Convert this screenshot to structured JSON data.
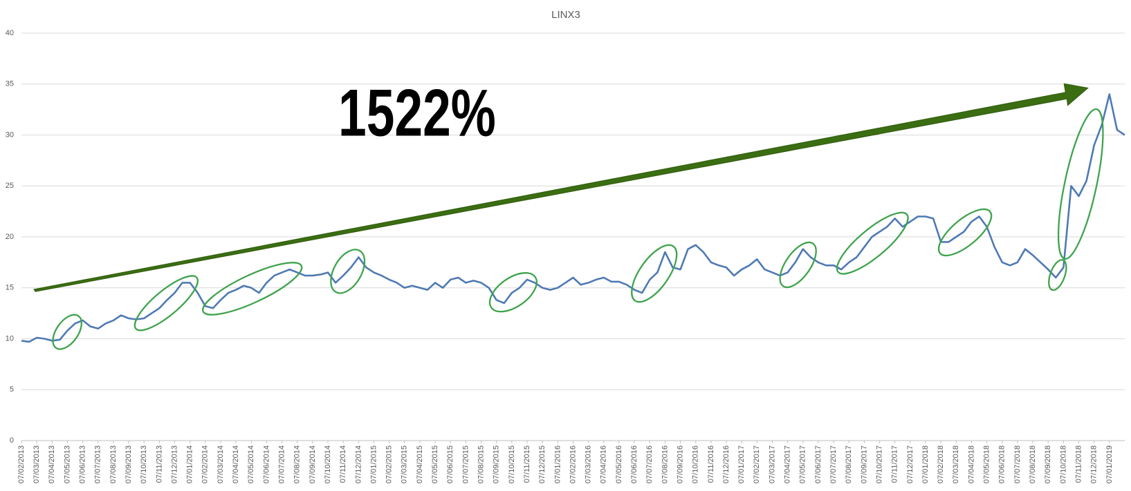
{
  "chart_data": {
    "type": "line",
    "title": "LINX3",
    "annotation": "1522%",
    "categories": [
      "07/02/2013",
      null,
      "07/03/2013",
      null,
      "07/04/2013",
      null,
      "07/05/2013",
      null,
      "07/06/2013",
      null,
      "07/07/2013",
      null,
      "07/08/2013",
      null,
      "07/09/2013",
      null,
      "07/10/2013",
      null,
      "07/11/2013",
      null,
      "07/12/2013",
      null,
      "07/01/2014",
      null,
      "07/02/2014",
      null,
      "07/03/2014",
      null,
      "07/04/2014",
      null,
      "07/05/2014",
      null,
      "07/06/2014",
      null,
      "07/07/2014",
      null,
      "07/08/2014",
      null,
      "07/09/2014",
      null,
      "07/10/2014",
      null,
      "07/11/2014",
      null,
      "07/12/2014",
      null,
      "07/01/2015",
      null,
      "07/02/2015",
      null,
      "07/03/2015",
      null,
      "07/04/2015",
      null,
      "07/05/2015",
      null,
      "07/06/2015",
      null,
      "07/07/2015",
      null,
      "07/08/2015",
      null,
      "07/09/2015",
      null,
      "07/10/2015",
      null,
      "07/11/2015",
      null,
      "07/12/2015",
      null,
      "07/01/2016",
      null,
      "07/02/2016",
      null,
      "07/03/2016",
      null,
      "07/04/2016",
      null,
      "07/05/2016",
      null,
      "07/06/2016",
      null,
      "07/07/2016",
      null,
      "07/08/2016",
      null,
      "07/09/2016",
      null,
      "07/10/2016",
      null,
      "07/11/2016",
      null,
      "07/12/2016",
      null,
      "07/01/2017",
      null,
      "07/02/2017",
      null,
      "07/03/2017",
      null,
      "07/04/2017",
      null,
      "07/05/2017",
      null,
      "07/06/2017",
      null,
      "07/07/2017",
      null,
      "07/08/2017",
      null,
      "07/09/2017",
      null,
      "07/10/2017",
      null,
      "07/11/2017",
      null,
      "07/12/2017",
      null,
      "07/01/2018",
      null,
      "07/02/2018",
      null,
      "07/03/2018",
      null,
      "07/04/2018",
      null,
      "07/05/2018",
      null,
      "07/06/2018",
      null,
      "07/07/2018",
      null,
      "07/08/2018",
      null,
      "07/09/2018",
      null,
      "07/10/2018",
      null,
      "07/11/2018",
      null,
      "07/12/2018",
      null,
      "07/01/2019",
      null,
      null
    ],
    "values": [
      9.8,
      9.7,
      10.1,
      10.0,
      9.8,
      9.9,
      10.8,
      11.5,
      11.8,
      11.2,
      11.0,
      11.5,
      11.8,
      12.3,
      12.0,
      11.9,
      12.0,
      12.5,
      13.0,
      13.8,
      14.5,
      15.5,
      15.5,
      14.5,
      13.2,
      13.0,
      13.8,
      14.5,
      14.8,
      15.2,
      15.0,
      14.5,
      15.5,
      16.2,
      16.5,
      16.8,
      16.5,
      16.2,
      16.2,
      16.3,
      16.5,
      15.5,
      16.2,
      17.0,
      18.0,
      17.0,
      16.5,
      16.2,
      15.8,
      15.5,
      15.0,
      15.2,
      15.0,
      14.8,
      15.5,
      15.0,
      15.8,
      16.0,
      15.5,
      15.7,
      15.5,
      15.0,
      13.8,
      13.5,
      14.5,
      15.0,
      15.8,
      15.5,
      15.0,
      14.8,
      15.0,
      15.5,
      16.0,
      15.3,
      15.5,
      15.8,
      16.0,
      15.6,
      15.6,
      15.3,
      14.8,
      14.5,
      15.8,
      16.5,
      18.5,
      17.0,
      16.8,
      18.8,
      19.2,
      18.5,
      17.5,
      17.2,
      17.0,
      16.2,
      16.8,
      17.2,
      17.8,
      16.8,
      16.5,
      16.2,
      16.5,
      17.5,
      18.8,
      18.0,
      17.5,
      17.2,
      17.2,
      16.8,
      17.5,
      18.0,
      19.0,
      20.0,
      20.5,
      21.0,
      21.8,
      21.0,
      21.5,
      22.0,
      22.0,
      21.8,
      19.5,
      19.5,
      20.0,
      20.5,
      21.5,
      22.0,
      21.0,
      19.0,
      17.5,
      17.2,
      17.5,
      18.8,
      18.2,
      17.5,
      16.8,
      16.0,
      17.0,
      25.0,
      24.0,
      25.5,
      29.0,
      31.0,
      34.0,
      30.5,
      30.0
    ],
    "color": "#4e79b4",
    "ylim": [
      0,
      40
    ],
    "yticks": [
      0,
      5,
      10,
      15,
      20,
      25,
      30,
      35,
      40
    ],
    "grid": true
  }
}
